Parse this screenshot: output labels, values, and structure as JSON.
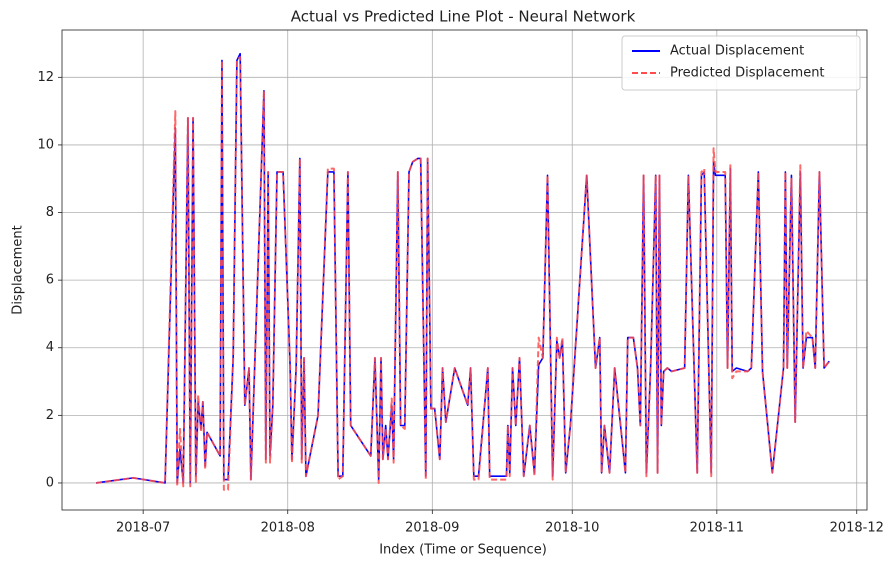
{
  "chart_data": {
    "type": "line",
    "title": "Actual vs Predicted Line Plot - Neural Network",
    "xlabel": "Index (Time or Sequence)",
    "ylabel": "Displacement",
    "x": [
      -10.1,
      -2.1,
      4.7,
      6.9,
      7.3,
      7.9,
      8.6,
      9.6,
      10.1,
      10.7,
      11.3,
      11.8,
      12.4,
      12.8,
      13.3,
      13.7,
      16.5,
      16.9,
      17.3,
      18.2,
      19.3,
      20.1,
      20.8,
      21.8,
      22.7,
      23.1,
      25.9,
      26.3,
      26.8,
      27.2,
      27.8,
      28.7,
      30.0,
      31.5,
      31.9,
      32.8,
      33.6,
      34.0,
      34.5,
      34.9,
      37.5,
      39.6,
      40.9,
      41.8,
      42.8,
      43.9,
      44.5,
      48.8,
      49.7,
      50.5,
      51.0,
      51.4,
      52.0,
      52.5,
      53.3,
      53.7,
      54.6,
      55.2,
      56.1,
      57.0,
      57.8,
      58.9,
      59.5,
      60.6,
      61.0,
      61.7,
      62.5,
      63.6,
      64.2,
      64.9,
      66.8,
      69.6,
      70.2,
      70.9,
      71.9,
      73.9,
      74.3,
      77.9,
      78.2,
      78.6,
      79.2,
      79.9,
      80.7,
      81.6,
      82.9,
      83.9,
      84.8,
      85.7,
      86.7,
      87.8,
      88.7,
      89.3,
      89.9,
      90.6,
      91.6,
      95.1,
      97.0,
      97.9,
      98.3,
      98.9,
      100.0,
      101.1,
      103.4,
      103.9,
      105.1,
      106.0,
      106.6,
      107.3,
      107.9,
      108.8,
      109.9,
      110.3,
      110.7,
      111.1,
      111.6,
      112.4,
      113.3,
      116.1,
      116.9,
      118.8,
      119.7,
      120.3,
      121.8,
      122.3,
      122.7,
      124.8,
      125.3,
      125.9,
      126.3,
      127.2,
      129.6,
      130.4,
      131.9,
      132.8,
      134.9,
      137.3,
      137.7,
      138.1,
      139.0,
      139.8,
      140.9,
      141.5,
      142.2,
      143.5,
      144.1,
      145.0,
      146.0,
      147.1
    ],
    "series": [
      {
        "name": "Actual Displacement",
        "color": "#0000ff",
        "dashed": false,
        "values": [
          0.0,
          0.15,
          0.0,
          10.5,
          0.0,
          1.0,
          0.0,
          10.8,
          0.0,
          10.8,
          0.2,
          2.4,
          1.6,
          2.4,
          0.5,
          1.5,
          0.8,
          12.5,
          0.1,
          0.1,
          3.7,
          12.5,
          12.7,
          2.3,
          3.4,
          0.1,
          11.6,
          0.7,
          9.2,
          0.8,
          2.3,
          9.2,
          9.2,
          3.5,
          0.7,
          3.4,
          9.6,
          0.7,
          3.7,
          0.2,
          2.0,
          9.2,
          9.2,
          0.2,
          0.2,
          9.2,
          1.7,
          0.8,
          3.7,
          0.1,
          3.7,
          0.7,
          1.7,
          0.7,
          2.3,
          0.7,
          9.2,
          1.7,
          1.7,
          9.2,
          9.5,
          9.6,
          9.6,
          0.2,
          9.6,
          2.2,
          2.2,
          0.7,
          3.4,
          1.8,
          3.4,
          2.3,
          3.4,
          0.2,
          0.2,
          3.4,
          0.2,
          0.2,
          1.7,
          0.3,
          3.4,
          1.7,
          3.7,
          0.2,
          1.7,
          0.3,
          3.5,
          3.7,
          9.1,
          0.2,
          4.2,
          3.7,
          4.2,
          0.3,
          1.7,
          9.1,
          3.4,
          4.3,
          0.3,
          1.7,
          0.3,
          3.4,
          0.3,
          4.3,
          4.3,
          3.4,
          1.7,
          9.1,
          0.3,
          3.4,
          9.1,
          0.3,
          9.1,
          1.7,
          3.3,
          3.4,
          3.3,
          3.4,
          9.1,
          0.3,
          9.1,
          9.2,
          0.3,
          9.5,
          9.1,
          9.1,
          3.4,
          9.3,
          3.3,
          3.4,
          3.3,
          3.4,
          9.2,
          3.3,
          0.3,
          3.4,
          9.2,
          3.4,
          9.1,
          1.8,
          9.2,
          3.4,
          4.3,
          4.3,
          3.4,
          9.2,
          3.4,
          3.6
        ]
      },
      {
        "name": "Predicted Displacement",
        "color": "#ff4d4d",
        "dashed": true,
        "values": [
          0.0,
          0.15,
          0.0,
          11.0,
          -0.1,
          1.6,
          -0.1,
          10.8,
          -0.1,
          10.8,
          0.0,
          2.6,
          1.5,
          2.4,
          0.4,
          1.5,
          0.8,
          12.5,
          -0.2,
          -0.2,
          3.7,
          12.5,
          12.6,
          2.3,
          3.4,
          0.1,
          11.6,
          0.6,
          9.2,
          0.6,
          2.3,
          9.2,
          9.2,
          3.5,
          0.6,
          3.4,
          9.6,
          0.6,
          3.7,
          0.2,
          2.0,
          9.3,
          9.3,
          0.1,
          0.2,
          9.2,
          1.7,
          0.8,
          3.7,
          0.0,
          3.7,
          0.7,
          1.6,
          0.7,
          2.5,
          0.6,
          9.2,
          1.7,
          1.6,
          9.2,
          9.5,
          9.6,
          9.6,
          0.1,
          9.6,
          2.2,
          2.2,
          0.7,
          3.4,
          1.8,
          3.4,
          2.3,
          3.4,
          0.1,
          0.1,
          3.4,
          0.1,
          0.1,
          1.7,
          0.2,
          3.4,
          1.7,
          3.7,
          0.2,
          1.7,
          0.2,
          4.3,
          3.7,
          9.1,
          0.1,
          4.3,
          3.7,
          4.3,
          0.3,
          1.7,
          9.1,
          3.4,
          4.3,
          0.3,
          1.7,
          0.3,
          3.4,
          0.3,
          4.3,
          4.3,
          3.4,
          1.7,
          9.1,
          0.2,
          3.4,
          9.1,
          0.3,
          9.1,
          1.7,
          3.3,
          3.4,
          3.3,
          3.4,
          9.1,
          0.3,
          9.2,
          9.3,
          0.2,
          9.9,
          9.2,
          9.2,
          3.4,
          9.4,
          3.1,
          3.3,
          3.3,
          3.4,
          9.2,
          3.3,
          0.3,
          3.4,
          9.2,
          3.4,
          9.0,
          1.8,
          9.4,
          3.4,
          4.5,
          4.3,
          3.4,
          9.2,
          3.4,
          3.6
        ]
      }
    ],
    "xlim": [
      -17.4,
      155.2
    ],
    "xticks": [
      {
        "value": 0,
        "label": "2018-07"
      },
      {
        "value": 31,
        "label": "2018-08"
      },
      {
        "value": 62,
        "label": "2018-09"
      },
      {
        "value": 92,
        "label": "2018-10"
      },
      {
        "value": 123,
        "label": "2018-11"
      },
      {
        "value": 153,
        "label": "2018-12"
      }
    ],
    "ylim": [
      -0.8,
      13.4
    ],
    "yticks": [
      0,
      2,
      4,
      6,
      8,
      10,
      12
    ],
    "grid": true,
    "legend": "upper-right"
  }
}
